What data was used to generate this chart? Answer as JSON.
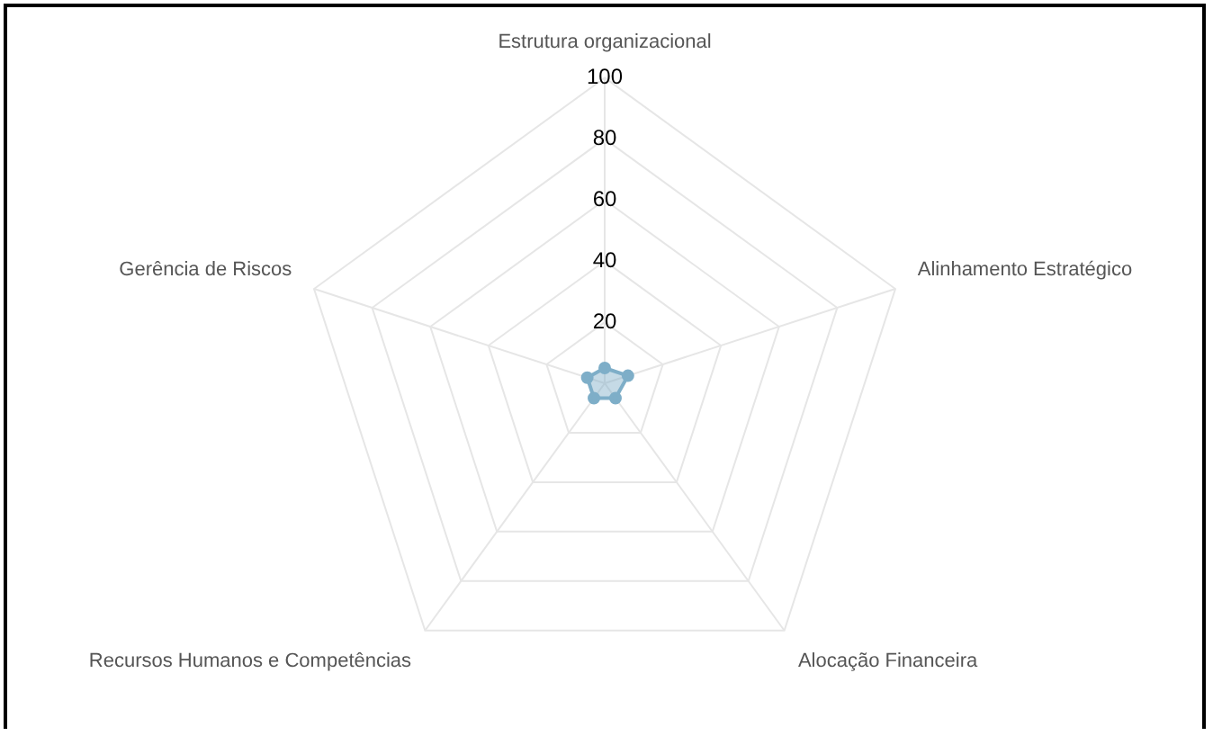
{
  "chart_data": {
    "type": "radar",
    "categories": [
      "Estrutura organizacional",
      "Alinhamento Estratégico",
      "Alocação Financeira",
      "Recursos Humanos e Competências",
      "Gerência de Riscos"
    ],
    "series": [
      {
        "color": "#7eaec8",
        "values": [
          5,
          8,
          6,
          6,
          6
        ]
      }
    ],
    "ylim": [
      0,
      100
    ],
    "yticks": [
      20,
      40,
      60,
      80,
      100
    ],
    "grid": true,
    "marker": "circle",
    "legend": false
  }
}
